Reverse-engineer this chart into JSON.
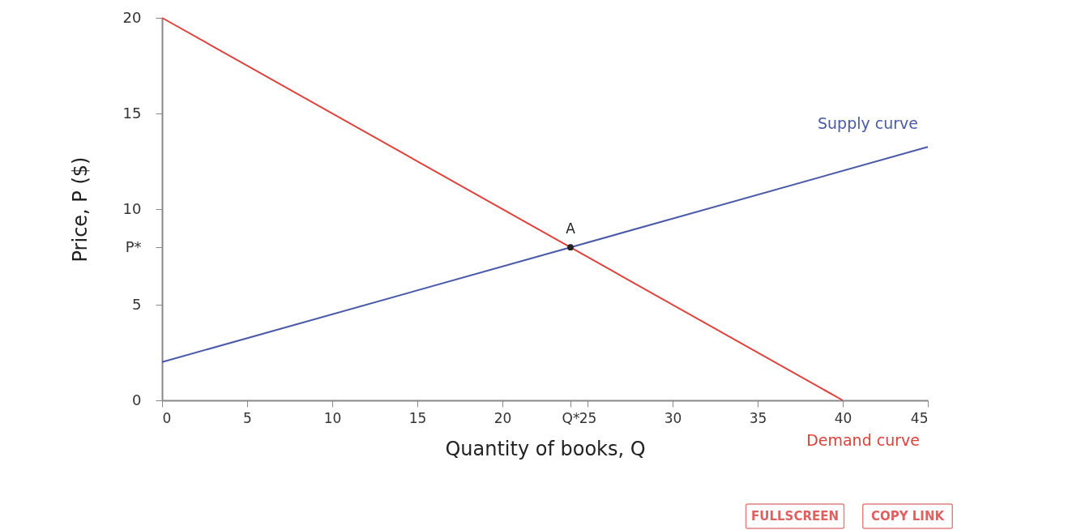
{
  "chart_data": {
    "type": "line",
    "xlabel": "Quantity of books, Q",
    "ylabel": "Price, P ($)",
    "xlim": [
      0,
      45
    ],
    "ylim": [
      0,
      20
    ],
    "xticks": [
      0,
      5,
      10,
      15,
      20,
      {
        "value": 24,
        "label": "Q*"
      },
      25,
      30,
      35,
      40,
      45
    ],
    "yticks": [
      0,
      5,
      {
        "value": 8,
        "label": "P*"
      },
      10,
      15,
      20
    ],
    "grid": false,
    "legend": false,
    "line_style": "solid",
    "series": [
      {
        "name": "Supply curve",
        "color": "#4a5aa8",
        "x": [
          0,
          45
        ],
        "values": [
          2,
          13.25
        ]
      },
      {
        "name": "Demand curve",
        "color": "#e0403a",
        "x": [
          0,
          40
        ],
        "values": [
          20,
          0
        ]
      },
      {
        "type": "scatter",
        "color": "#222222",
        "x": [
          24
        ],
        "values": [
          8
        ]
      }
    ],
    "annotations": [
      {
        "text": "A",
        "x": 24,
        "y": 8
      },
      "FULLSCREEN",
      "COPY LINK"
    ]
  }
}
